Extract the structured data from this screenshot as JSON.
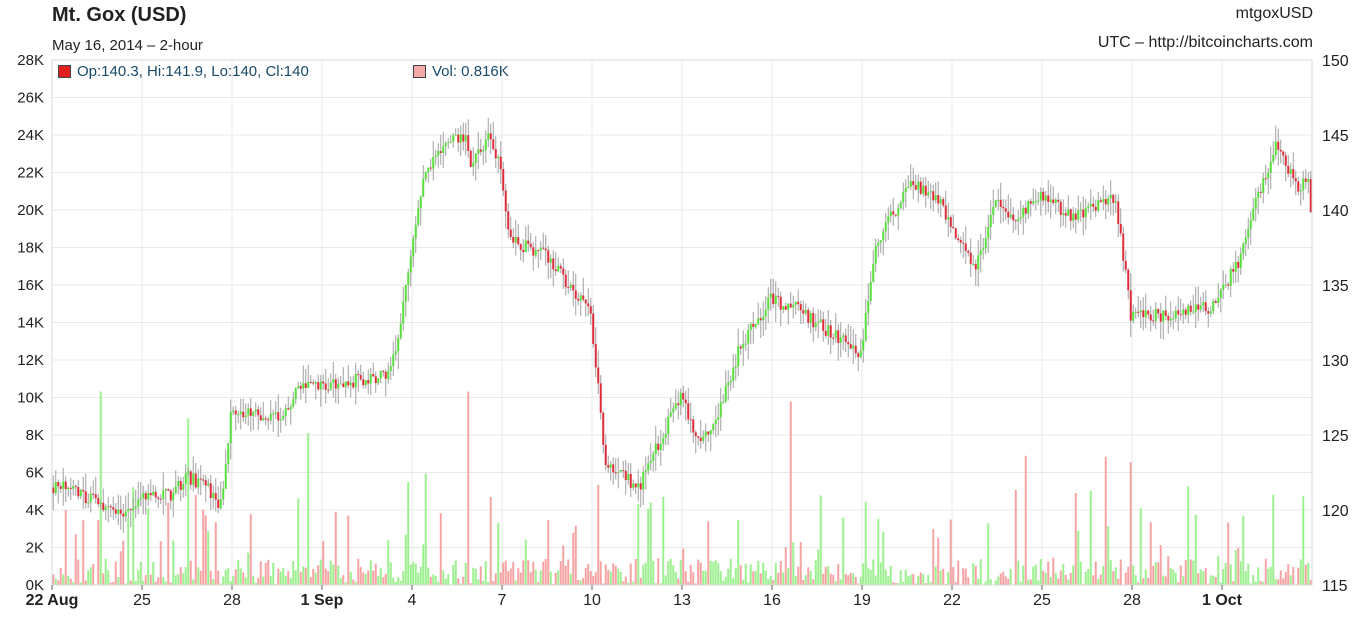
{
  "header": {
    "title": "Mt. Gox (USD)",
    "subtitle": "May 16, 2014 – 2-hour",
    "symbol": "mtgoxUSD",
    "source": "UTC – http://bitcoincharts.com"
  },
  "legend": {
    "ohlc_label": "Op:140.3, Hi:141.9, Lo:140, Cl:140",
    "ohlc_color": "#e02020",
    "volume_label": "Vol: 0.816K",
    "volume_color": "#f5a8a8"
  },
  "colors": {
    "up": "#55e03a",
    "down": "#e02b3a",
    "wick": "#a0a0a0",
    "vol_up": "#9df08f",
    "vol_down": "#f6a3a3",
    "grid": "#e8e8e8"
  },
  "chart_data": {
    "type": "candlestick",
    "interval": "2-hour",
    "x_ticks": [
      "22 Aug",
      "25",
      "28",
      "1 Sep",
      "4",
      "7",
      "10",
      "13",
      "16",
      "19",
      "22",
      "25",
      "28",
      "1 Oct"
    ],
    "x_ticks_bold": [
      "22 Aug",
      "1 Sep",
      "1 Oct"
    ],
    "y_price_ticks": [
      "115",
      "120",
      "125",
      "130",
      "135",
      "140",
      "145",
      "150"
    ],
    "y_volume_ticks": [
      "0K",
      "2K",
      "4K",
      "6K",
      "8K",
      "10K",
      "12K",
      "14K",
      "16K",
      "18K",
      "20K",
      "22K",
      "24K",
      "26K",
      "28K"
    ],
    "price_range": [
      115,
      150
    ],
    "volume_range": [
      0,
      28000
    ],
    "grid": true,
    "price_anchor_days": [
      0,
      0.5,
      1.5,
      2.5,
      3,
      4,
      4.6,
      5.2,
      5.7,
      6,
      7.8,
      8.3,
      9,
      9.8,
      11.3,
      11.7,
      12.4,
      12.9,
      13.8,
      14,
      14.6,
      15,
      15.3,
      16.5,
      18,
      18.5,
      19.6,
      20.5,
      21,
      21.6,
      22,
      23,
      24,
      24.8,
      25.5,
      27,
      27.5,
      28.6,
      28.9,
      29.6,
      30,
      30.8,
      31.5,
      32.1,
      32.4,
      33.1,
      34,
      35.5,
      36,
      37.5,
      38.3,
      38.6,
      39,
      39.6,
      40,
      40.9,
      41,
      41.6,
      41.9,
      42
    ],
    "price_anchor_values": [
      121.5,
      121.7,
      120.5,
      119.5,
      121,
      121,
      122.2,
      121.5,
      120.3,
      126.5,
      126.2,
      128.5,
      128.2,
      128.5,
      129,
      133,
      142,
      144,
      145,
      143,
      145,
      143,
      138,
      137,
      133,
      123,
      121.5,
      125.5,
      127.5,
      124.5,
      125,
      131,
      134,
      133.5,
      132.5,
      130.5,
      137.8,
      141.5,
      141.5,
      140.6,
      139,
      136,
      140.5,
      139.5,
      140,
      141,
      139.5,
      140.8,
      133,
      133,
      133.5,
      133.4,
      134.5,
      136.5,
      139.5,
      144.5,
      143.7,
      141.5,
      142,
      140
    ]
  }
}
